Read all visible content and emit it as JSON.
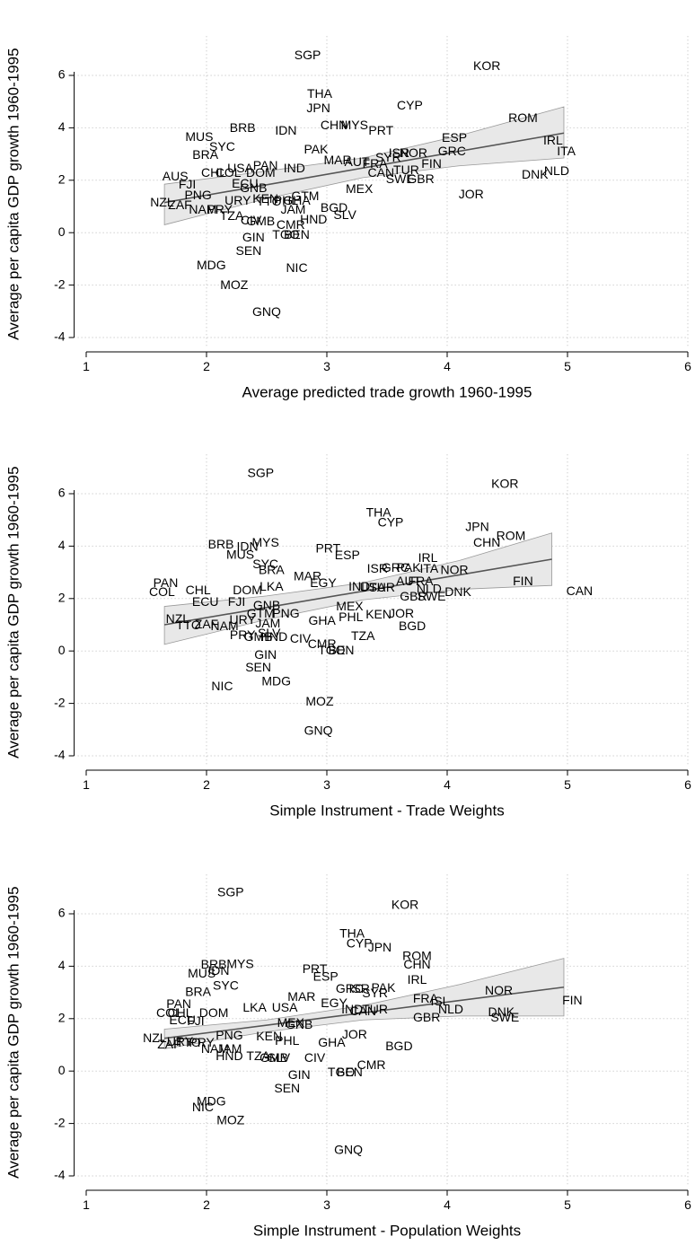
{
  "chart_data": [
    {
      "type": "scatter",
      "x_label": "Average predicted trade growth 1960-1995",
      "y_label": "Average per capita GDP growth 1960-1995",
      "xlim": [
        0.9,
        6.0
      ],
      "ylim": [
        -4.55,
        7.5
      ],
      "xticks": [
        1,
        2,
        3,
        4,
        5,
        6
      ],
      "yticks": [
        -4,
        -2,
        0,
        2,
        4,
        6
      ],
      "grid": true,
      "labels": [
        "SGP",
        "KOR",
        "THA",
        "JPN",
        "CYP",
        "ROM",
        "CHN",
        "MYS",
        "PRT",
        "BRB",
        "IDN",
        "MUS",
        "ESP",
        "IRL",
        "SYC",
        "BRA",
        "PAK",
        "GRC",
        "ITA",
        "ISR",
        "NOR",
        "MAR",
        "AUT",
        "SYR",
        "FRA",
        "FIN",
        "PAN",
        "IND",
        "USA",
        "AUS",
        "CHL",
        "COL",
        "DOM",
        "CAN",
        "TUR",
        "DNK",
        "NLD",
        "SWE",
        "GBR",
        "FJI",
        "ECU",
        "GNB",
        "MEX",
        "JOR",
        "PNG",
        "GTM",
        "NZL",
        "ZAF",
        "NAM",
        "PRY",
        "URY",
        "TTO",
        "PHL",
        "KEN",
        "GHA",
        "JAM",
        "BGD",
        "SLV",
        "HND",
        "TZA",
        "CIV",
        "GMB",
        "CMR",
        "BEN",
        "TGO",
        "GIN",
        "SEN",
        "NIC",
        "MDG",
        "MOZ",
        "GNQ"
      ],
      "x": [
        2.84,
        4.33,
        2.94,
        2.93,
        3.69,
        4.63,
        3.06,
        3.23,
        3.45,
        2.3,
        2.66,
        1.94,
        4.06,
        4.88,
        2.13,
        1.99,
        2.91,
        4.04,
        4.99,
        3.6,
        3.72,
        3.09,
        3.25,
        3.51,
        3.4,
        3.87,
        2.49,
        2.73,
        2.28,
        1.74,
        2.06,
        2.18,
        2.45,
        3.45,
        3.66,
        4.73,
        4.91,
        3.61,
        3.78,
        1.84,
        2.32,
        2.39,
        3.27,
        4.2,
        1.93,
        2.82,
        1.63,
        1.78,
        1.97,
        2.11,
        2.26,
        2.52,
        2.66,
        2.49,
        2.75,
        2.72,
        3.06,
        3.15,
        2.89,
        2.21,
        2.37,
        2.45,
        2.7,
        2.75,
        2.66,
        2.39,
        2.35,
        2.75,
        2.04,
        2.23,
        2.5
      ],
      "values": [
        6.75,
        6.34,
        5.27,
        4.73,
        4.83,
        4.35,
        4.08,
        4.08,
        3.87,
        3.97,
        3.87,
        3.63,
        3.6,
        3.49,
        3.25,
        2.95,
        3.15,
        3.08,
        3.08,
        3.01,
        3.01,
        2.74,
        2.67,
        2.84,
        2.6,
        2.6,
        2.53,
        2.43,
        2.43,
        2.12,
        2.26,
        2.26,
        2.26,
        2.26,
        2.36,
        2.19,
        2.33,
        2.02,
        2.02,
        1.82,
        1.84,
        1.67,
        1.64,
        1.44,
        1.4,
        1.37,
        1.13,
        1.03,
        0.86,
        0.85,
        1.2,
        1.16,
        1.2,
        1.26,
        1.2,
        0.86,
        0.92,
        0.65,
        0.48,
        0.62,
        0.45,
        0.41,
        0.27,
        -0.1,
        -0.1,
        -0.21,
        -0.72,
        -1.37,
        -1.27,
        -2.02,
        -3.05
      ],
      "fit": {
        "x": [
          1.65,
          4.97
        ],
        "values": [
          1.15,
          3.8
        ],
        "color": "#555555"
      },
      "ci": {
        "x": [
          1.65,
          2.5,
          3.3,
          4.1,
          4.97
        ],
        "lower": [
          0.3,
          1.3,
          2.1,
          2.55,
          2.85
        ],
        "upper": [
          1.85,
          2.35,
          2.85,
          3.7,
          4.8
        ],
        "color": "#e8e8e8"
      }
    },
    {
      "type": "scatter",
      "x_label": "Simple Instrument - Trade Weights",
      "y_label": "Average per capita GDP growth 1960-1995",
      "xlim": [
        0.9,
        6.0
      ],
      "ylim": [
        -4.55,
        7.5
      ],
      "xticks": [
        1,
        2,
        3,
        4,
        5,
        6
      ],
      "yticks": [
        -4,
        -2,
        0,
        2,
        4,
        6
      ],
      "grid": true,
      "labels": [
        "SGP",
        "KOR",
        "THA",
        "CYP",
        "JPN",
        "ROM",
        "CHN",
        "MYS",
        "BRB",
        "IDN",
        "MUS",
        "PRT",
        "ESP",
        "SYC",
        "IRL",
        "ISR",
        "GRC",
        "PAK",
        "ITA",
        "NOR",
        "BRA",
        "MAR",
        "PAN",
        "EGY",
        "AUT",
        "FRA",
        "LKA",
        "CHL",
        "DOM",
        "COL",
        "IND",
        "TUR",
        "USA",
        "SWE",
        "GBR",
        "DNK",
        "NLD",
        "FIN",
        "CAN",
        "ECU",
        "FJI",
        "GNB",
        "PNG",
        "MEX",
        "GTM",
        "KEN",
        "JOR",
        "PHL",
        "GHA",
        "BGD",
        "NZL",
        "ZAF",
        "URY",
        "NAM",
        "TTO",
        "PRY",
        "JAM",
        "SLV",
        "HND",
        "GMB",
        "CIV",
        "TZA",
        "CMR",
        "TGO",
        "BEN",
        "GIN",
        "SEN",
        "MDG",
        "NIC",
        "MOZ",
        "GNQ"
      ],
      "x": [
        2.45,
        4.48,
        3.43,
        3.53,
        4.25,
        4.53,
        4.33,
        2.49,
        2.12,
        2.34,
        2.28,
        3.01,
        3.17,
        2.49,
        3.84,
        3.42,
        3.57,
        3.68,
        3.85,
        4.06,
        2.54,
        2.84,
        1.66,
        2.97,
        3.68,
        3.78,
        2.54,
        1.93,
        2.34,
        1.63,
        3.27,
        3.46,
        3.38,
        3.87,
        3.72,
        4.09,
        3.85,
        4.63,
        5.1,
        1.99,
        2.25,
        2.5,
        2.66,
        3.19,
        2.45,
        3.43,
        3.62,
        3.2,
        2.96,
        3.71,
        1.76,
        2.0,
        2.3,
        2.15,
        1.85,
        2.3,
        2.51,
        2.52,
        2.56,
        2.43,
        2.78,
        3.3,
        2.96,
        3.04,
        3.12,
        2.49,
        2.43,
        2.58,
        2.13,
        2.94,
        2.93
      ],
      "values": [
        6.76,
        6.35,
        5.26,
        4.88,
        4.71,
        4.37,
        4.1,
        4.1,
        4.03,
        3.96,
        3.65,
        3.89,
        3.62,
        3.28,
        3.52,
        3.11,
        3.14,
        3.14,
        3.11,
        3.07,
        3.07,
        2.83,
        2.56,
        2.56,
        2.63,
        2.63,
        2.42,
        2.29,
        2.29,
        2.22,
        2.42,
        2.39,
        2.39,
        2.05,
        2.05,
        2.22,
        2.35,
        2.63,
        2.25,
        1.84,
        1.84,
        1.71,
        1.4,
        1.67,
        1.4,
        1.37,
        1.4,
        1.26,
        1.13,
        0.92,
        1.19,
        0.99,
        1.16,
        0.92,
        0.96,
        0.58,
        1.02,
        0.65,
        0.51,
        0.51,
        0.44,
        0.55,
        0.24,
        0,
        0,
        -0.17,
        -0.65,
        -1.19,
        -1.37,
        -1.95,
        -3.07
      ],
      "fit": {
        "x": [
          1.65,
          4.87
        ],
        "values": [
          1.0,
          3.5
        ],
        "color": "#555555"
      },
      "ci": {
        "x": [
          1.65,
          2.5,
          3.3,
          4.1,
          4.87
        ],
        "lower": [
          0.25,
          1.2,
          1.95,
          2.35,
          2.5
        ],
        "upper": [
          1.7,
          2.1,
          2.6,
          3.45,
          4.5
        ],
        "color": "#e8e8e8"
      }
    },
    {
      "type": "scatter",
      "x_label": "Simple Instrument - Population Weights",
      "y_label": "Average per capita GDP growth 1960-1995",
      "xlim": [
        0.9,
        6.0
      ],
      "ylim": [
        -4.55,
        7.5
      ],
      "xticks": [
        1,
        2,
        3,
        4,
        5,
        6
      ],
      "yticks": [
        -4,
        -2,
        0,
        2,
        4,
        6
      ],
      "grid": true,
      "labels": [
        "SGP",
        "KOR",
        "THA",
        "CYP",
        "JPN",
        "ROM",
        "CHN",
        "BRB",
        "MYS",
        "IDN",
        "MUS",
        "PRT",
        "ESP",
        "SYC",
        "BRA",
        "IRL",
        "GRC",
        "ISR",
        "PAK",
        "SYR",
        "MAR",
        "EGY",
        "FRA",
        "ISL",
        "NOR",
        "FIN",
        "USA",
        "LKA",
        "IND",
        "TUR",
        "CAN",
        "NLD",
        "GBR",
        "DNK",
        "SWE",
        "PAN",
        "COL",
        "CHL",
        "DOM",
        "ECU",
        "FJI",
        "GNB",
        "MEX",
        "PNG",
        "KEN",
        "PHL",
        "JOR",
        "GHA",
        "BGD",
        "NZL",
        "ZAF",
        "NAM",
        "URY",
        "TTO",
        "PRY",
        "JAM",
        "HND",
        "TZA",
        "GMB",
        "SLV",
        "CIV",
        "CMR",
        "TGO",
        "BEN",
        "GIN",
        "SEN",
        "MDG",
        "NIC",
        "MOZ",
        "GNQ"
      ],
      "x": [
        2.2,
        3.65,
        3.21,
        3.27,
        3.44,
        3.75,
        3.75,
        2.06,
        2.28,
        2.1,
        1.96,
        2.9,
        2.99,
        2.16,
        1.93,
        3.75,
        3.19,
        3.27,
        3.47,
        3.4,
        2.79,
        3.06,
        3.82,
        3.94,
        4.43,
        5.04,
        2.65,
        2.4,
        3.21,
        3.4,
        3.3,
        4.03,
        3.83,
        4.45,
        4.48,
        1.77,
        1.69,
        1.78,
        2.06,
        1.8,
        1.91,
        2.77,
        2.7,
        2.19,
        2.52,
        2.67,
        3.23,
        3.04,
        3.6,
        1.57,
        1.69,
        2.07,
        1.78,
        1.85,
        1.96,
        2.19,
        2.19,
        2.43,
        2.56,
        2.6,
        2.9,
        3.37,
        3.12,
        3.19,
        2.77,
        2.67,
        2.04,
        1.97,
        2.2,
        3.18
      ],
      "values": [
        6.79,
        6.31,
        5.22,
        4.85,
        4.68,
        4.37,
        4.03,
        4.03,
        4.06,
        3.79,
        3.69,
        3.86,
        3.58,
        3.24,
        3.0,
        3.45,
        3.11,
        3.11,
        3.14,
        2.94,
        2.8,
        2.56,
        2.73,
        2.63,
        3.04,
        2.66,
        2.39,
        2.39,
        2.32,
        2.32,
        2.25,
        2.32,
        2.01,
        2.22,
        2.01,
        2.53,
        2.18,
        2.18,
        2.18,
        1.91,
        1.88,
        1.74,
        1.81,
        1.33,
        1.3,
        1.13,
        1.37,
        1.06,
        0.92,
        1.23,
        0.99,
        0.82,
        1.09,
        1.06,
        1.06,
        0.82,
        0.55,
        0.55,
        0.48,
        0.48,
        0.48,
        0.2,
        -0.07,
        -0.07,
        -0.17,
        -0.68,
        -1.19,
        -1.4,
        -1.91,
        -3.04
      ],
      "fit": {
        "x": [
          1.65,
          4.97
        ],
        "values": [
          1.25,
          3.2
        ],
        "color": "#555555"
      },
      "ci": {
        "x": [
          1.65,
          2.5,
          3.3,
          4.1,
          4.97
        ],
        "lower": [
          0.85,
          1.5,
          1.95,
          2.1,
          2.1
        ],
        "upper": [
          1.6,
          1.95,
          2.5,
          3.3,
          4.3
        ],
        "color": "#e8e8e8"
      }
    }
  ]
}
